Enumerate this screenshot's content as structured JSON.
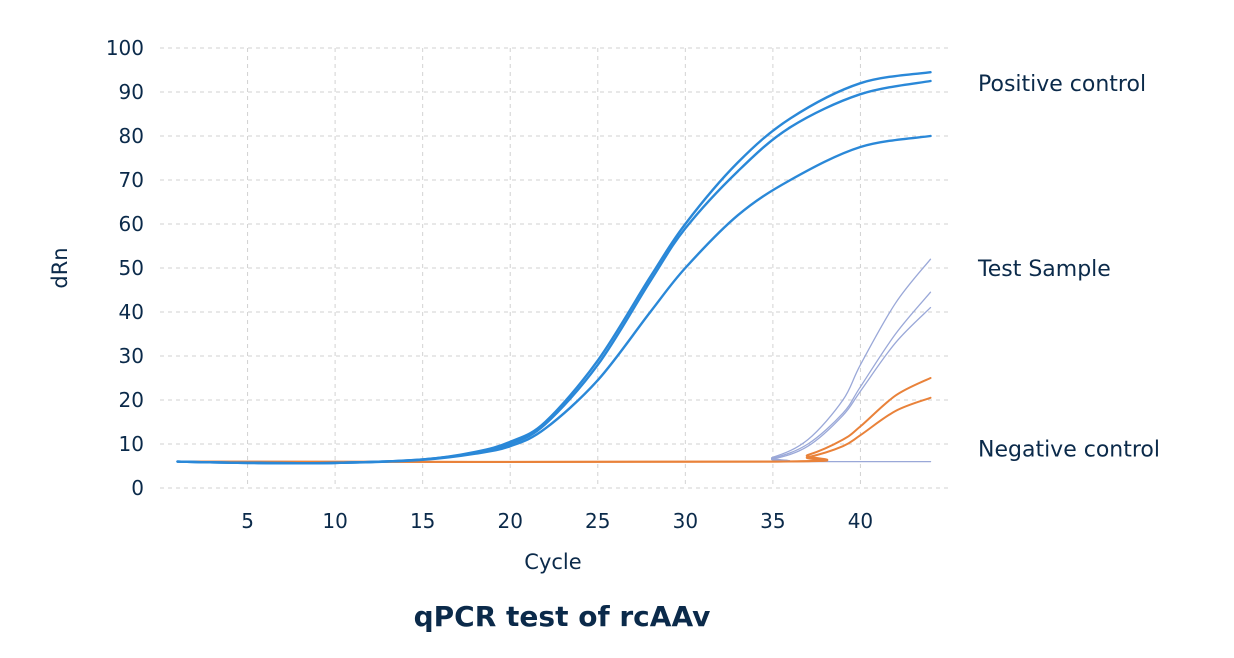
{
  "chart_data": {
    "type": "line",
    "title": "qPCR test of rcAAv",
    "xlabel": "Cycle",
    "ylabel": "dRn",
    "xlim": [
      0,
      45
    ],
    "ylim": [
      0,
      100
    ],
    "xticks": [
      5,
      10,
      15,
      20,
      25,
      30,
      35,
      40
    ],
    "yticks": [
      0,
      10,
      20,
      30,
      40,
      50,
      60,
      70,
      80,
      90,
      100
    ],
    "grid": true,
    "group_labels": [
      {
        "text": "Positive control",
        "y": 92
      },
      {
        "text": "Test Sample",
        "y": 50
      },
      {
        "text": "Negative control",
        "y": 9
      }
    ],
    "colors": {
      "positive": "#2a88d8",
      "test": "#9aa8d8",
      "orange": "#e9823a",
      "baseline": "#9aa8d8"
    },
    "series": [
      {
        "group": "positive",
        "x": [
          1,
          5,
          10,
          15,
          18,
          20,
          22,
          25,
          28,
          30,
          33,
          36,
          40,
          44
        ],
        "y": [
          6,
          5.7,
          5.7,
          6.5,
          8.2,
          10.5,
          15,
          29,
          48,
          60,
          74,
          84,
          92,
          94.5
        ]
      },
      {
        "group": "positive",
        "x": [
          1,
          5,
          10,
          15,
          18,
          20,
          22,
          25,
          28,
          30,
          33,
          36,
          40,
          44
        ],
        "y": [
          6,
          5.7,
          5.7,
          6.5,
          8,
          10,
          14.5,
          28,
          47,
          59,
          72,
          82,
          89.5,
          92.5
        ]
      },
      {
        "group": "positive",
        "x": [
          1,
          5,
          10,
          15,
          18,
          20,
          22,
          25,
          28,
          30,
          33,
          36,
          40,
          44
        ],
        "y": [
          6,
          5.7,
          5.7,
          6.4,
          7.8,
          9.5,
          13.5,
          24.5,
          40,
          50,
          62,
          70,
          77.5,
          80
        ]
      },
      {
        "group": "test",
        "x": [
          1,
          33,
          35,
          37,
          39,
          40,
          42,
          44
        ],
        "y": [
          6,
          6,
          7,
          11,
          20,
          28,
          42,
          52
        ]
      },
      {
        "group": "test",
        "x": [
          1,
          33,
          35,
          37,
          39,
          40,
          42,
          44
        ],
        "y": [
          6,
          6,
          6.8,
          10,
          17,
          23,
          35,
          44.5
        ]
      },
      {
        "group": "test",
        "x": [
          1,
          33,
          35,
          37,
          39,
          40,
          42,
          44
        ],
        "y": [
          6,
          6,
          6.6,
          9.5,
          16.5,
          22,
          33,
          41
        ]
      },
      {
        "group": "orange",
        "x": [
          1,
          35,
          37,
          39,
          40,
          42,
          44
        ],
        "y": [
          6,
          6,
          7.5,
          11,
          14,
          21,
          25
        ]
      },
      {
        "group": "orange",
        "x": [
          1,
          35,
          37,
          39,
          40,
          42,
          44
        ],
        "y": [
          6,
          6,
          7,
          9.5,
          12,
          17.5,
          20.5
        ]
      },
      {
        "group": "baseline",
        "x": [
          1,
          44
        ],
        "y": [
          6,
          6
        ]
      }
    ]
  }
}
